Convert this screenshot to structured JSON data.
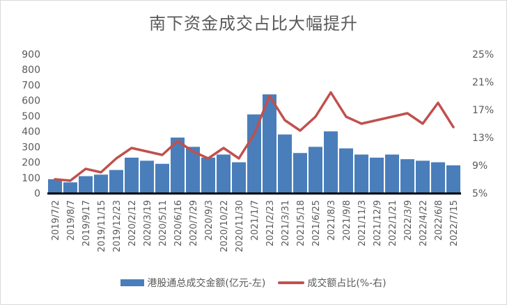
{
  "chart_data": {
    "type": "bar+line",
    "title": "南下资金成交占比大幅提升",
    "categories": [
      "2019/7/2",
      "2019/8/7",
      "2019/9/17",
      "2019/11/15",
      "2019/12/23",
      "2020/2/12",
      "2020/3/19",
      "2020/5/11",
      "2020/6/16",
      "2020/7/29",
      "2020/9/3",
      "2020/10/22",
      "2020/11/30",
      "2021/1/7",
      "2021/2/23",
      "2021/3/31",
      "2021/5/18",
      "2021/6/25",
      "2021/8/3",
      "2021/9/8",
      "2021/11/3",
      "2021/12/9",
      "2022/1/21",
      "2022/3/9",
      "2022/4/22",
      "2022/6/8",
      "2022/7/15"
    ],
    "left_axis": {
      "min": 0,
      "max": 900,
      "ticks": [
        "0",
        "100",
        "200",
        "300",
        "400",
        "500",
        "600",
        "700",
        "800",
        "900"
      ]
    },
    "right_axis": {
      "min": 5,
      "max": 25,
      "ticks": [
        "5%",
        "9%",
        "13%",
        "17%",
        "21%",
        "25%"
      ]
    },
    "series": [
      {
        "name": "港股通总成交金额(亿元-左)",
        "type": "bar",
        "color": "#4a7ebb",
        "values": [
          90,
          70,
          110,
          120,
          150,
          230,
          210,
          190,
          360,
          300,
          230,
          250,
          200,
          510,
          640,
          380,
          260,
          300,
          400,
          290,
          250,
          230,
          250,
          220,
          210,
          200,
          180
        ]
      },
      {
        "name": "成交额占比(%-右)",
        "type": "line",
        "color": "#c0504d",
        "values": [
          7.0,
          6.8,
          8.5,
          8.0,
          10.0,
          11.5,
          11.0,
          10.5,
          12.5,
          11.0,
          10.0,
          11.5,
          10.0,
          13.5,
          19.0,
          15.5,
          14.0,
          16.0,
          19.5,
          16.0,
          15.0,
          15.5,
          16.0,
          16.5,
          15.0,
          18.0,
          14.5
        ]
      }
    ],
    "grid": false,
    "legend_position": "bottom"
  }
}
